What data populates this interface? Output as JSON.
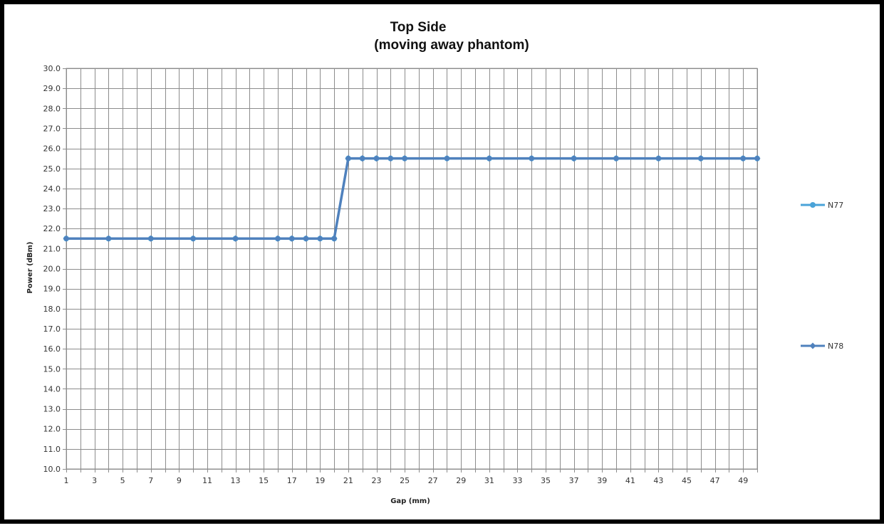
{
  "chart_data": {
    "type": "line",
    "title_line1": "Top Side",
    "title_line2": "(moving away phantom)",
    "xlabel": "Gap (mm)",
    "ylabel": "Power (dBm)",
    "ylim": [
      10,
      30
    ],
    "y_step": 1,
    "y_tick_labels": [
      "10.0",
      "11.0",
      "12.0",
      "13.0",
      "14.0",
      "15.0",
      "16.0",
      "17.0",
      "18.0",
      "19.0",
      "20.0",
      "21.0",
      "22.0",
      "23.0",
      "24.0",
      "25.0",
      "26.0",
      "27.0",
      "28.0",
      "29.0",
      "30.0"
    ],
    "x_categories": [
      1,
      2,
      3,
      4,
      5,
      6,
      7,
      8,
      9,
      10,
      11,
      12,
      13,
      14,
      15,
      16,
      17,
      18,
      19,
      20,
      21,
      22,
      23,
      24,
      25,
      26,
      27,
      28,
      29,
      30,
      31,
      32,
      33,
      34,
      35,
      36,
      37,
      38,
      39,
      40,
      41,
      42,
      43,
      44,
      45,
      46,
      47,
      48,
      49,
      50
    ],
    "x_tick_labels": [
      "1",
      "3",
      "5",
      "7",
      "9",
      "11",
      "13",
      "15",
      "17",
      "19",
      "21",
      "23",
      "25",
      "27",
      "29",
      "31",
      "33",
      "35",
      "37",
      "39",
      "41",
      "43",
      "45",
      "47",
      "49"
    ],
    "grid": true,
    "legend_position": "right",
    "series": [
      {
        "name": "N77",
        "color": "#4aa3d8",
        "marker": "circle",
        "x": [
          1,
          4,
          7,
          10,
          13,
          16,
          17,
          18,
          19,
          20,
          21,
          22,
          23,
          24,
          25,
          28,
          31,
          34,
          37,
          40,
          43,
          46,
          49,
          50
        ],
        "values": [
          21.5,
          21.5,
          21.5,
          21.5,
          21.5,
          21.5,
          21.5,
          21.5,
          21.5,
          21.5,
          25.5,
          25.5,
          25.5,
          25.5,
          25.5,
          25.5,
          25.5,
          25.5,
          25.5,
          25.5,
          25.5,
          25.5,
          25.5,
          25.5
        ]
      },
      {
        "name": "N78",
        "color": "#4f81bd",
        "marker": "diamond",
        "x": [
          1,
          4,
          7,
          10,
          13,
          16,
          17,
          18,
          19,
          20,
          21,
          22,
          23,
          24,
          25,
          28,
          31,
          34,
          37,
          40,
          43,
          46,
          49,
          50
        ],
        "values": [
          21.5,
          21.5,
          21.5,
          21.5,
          21.5,
          21.5,
          21.5,
          21.5,
          21.5,
          21.5,
          25.5,
          25.5,
          25.5,
          25.5,
          25.5,
          25.5,
          25.5,
          25.5,
          25.5,
          25.5,
          25.5,
          25.5,
          25.5,
          25.5
        ]
      }
    ]
  }
}
